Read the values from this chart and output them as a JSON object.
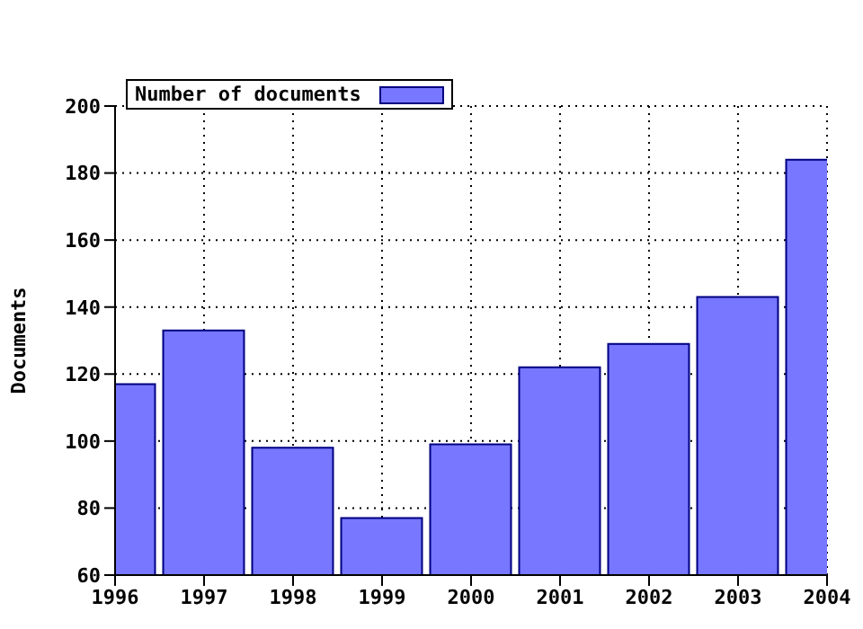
{
  "chart_data": {
    "type": "bar",
    "ylabel": "Documents",
    "x": [
      1996,
      1997,
      1998,
      1999,
      2000,
      2001,
      2002,
      2003,
      2004
    ],
    "series": [
      {
        "name": "Number of documents",
        "color": "#7777ff",
        "values": [
          117,
          133,
          98,
          77,
          99,
          122,
          129,
          143,
          184
        ]
      }
    ],
    "xlim": [
      1996,
      2004
    ],
    "xticks": [
      1996,
      1997,
      1998,
      1999,
      2000,
      2001,
      2002,
      2003,
      2004
    ],
    "ylim": [
      60,
      200
    ],
    "yticks": [
      60,
      80,
      100,
      120,
      140,
      160,
      180,
      200
    ],
    "grid": true,
    "legend": "top left"
  }
}
